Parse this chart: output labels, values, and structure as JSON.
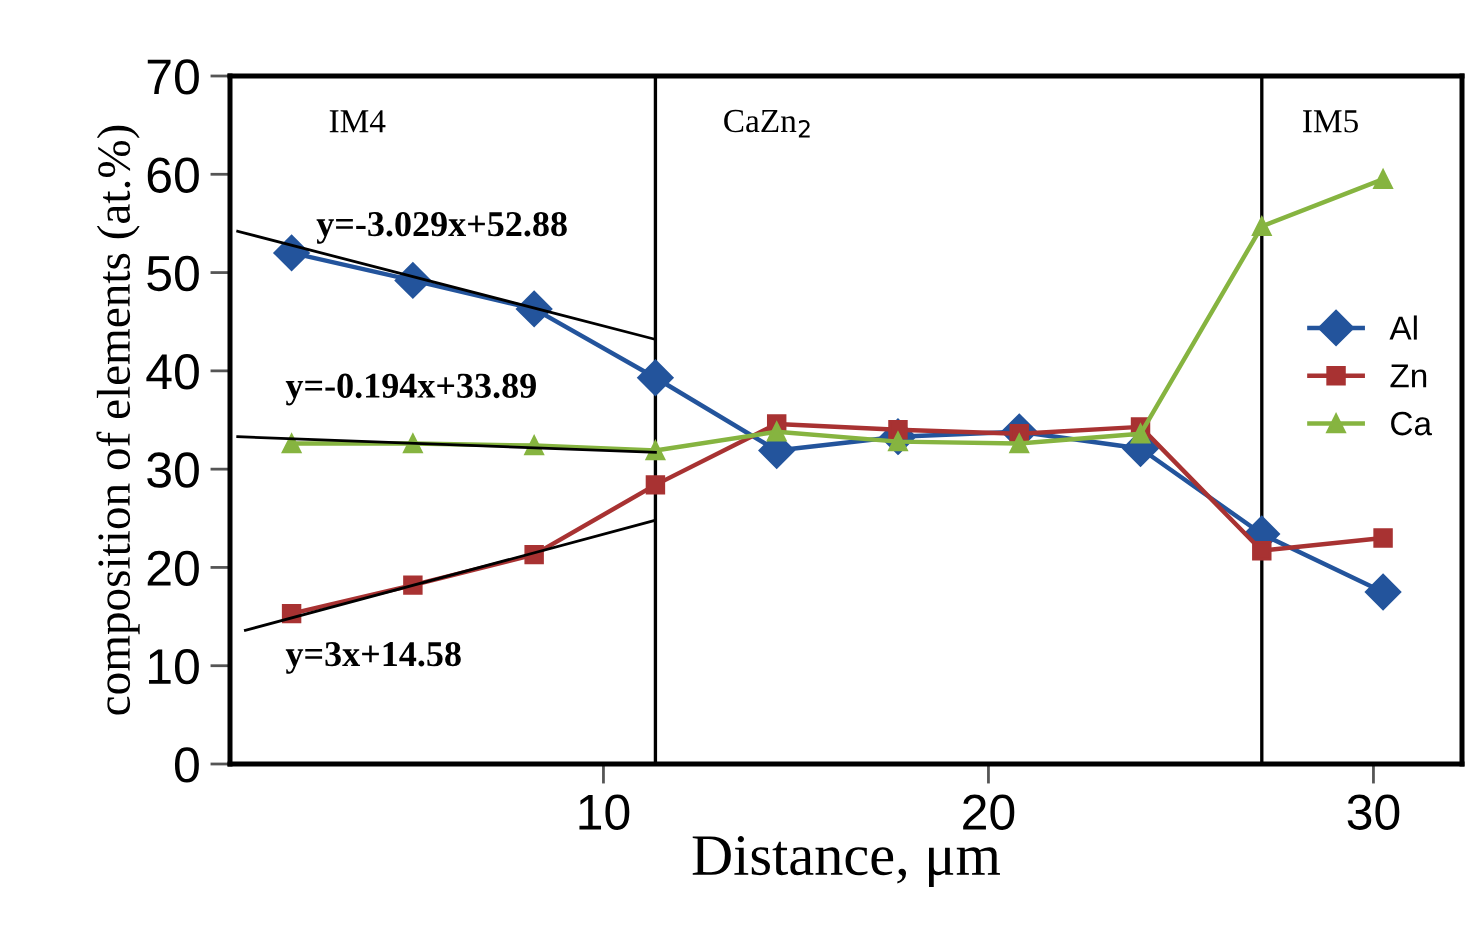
{
  "chart_data": {
    "type": "line",
    "xlabel": "Distance, μm",
    "ylabel": "composition of elements (at.%)",
    "x": [
      1.9,
      5.05,
      8.2,
      11.35,
      14.5,
      17.65,
      20.8,
      23.95,
      27.1,
      30.25
    ],
    "series": [
      {
        "name": "Al",
        "color": "#23549c",
        "marker": "diamond",
        "values": [
          52.0,
          49.2,
          46.3,
          39.3,
          31.9,
          33.3,
          33.8,
          32.1,
          23.4,
          17.5
        ]
      },
      {
        "name": "Zn",
        "color": "#a83232",
        "marker": "square",
        "values": [
          15.3,
          18.2,
          21.3,
          28.4,
          34.6,
          34.0,
          33.6,
          34.3,
          21.7,
          23.0
        ]
      },
      {
        "name": "Ca",
        "color": "#86b440",
        "marker": "triangle",
        "values": [
          32.6,
          32.6,
          32.4,
          31.9,
          33.8,
          32.8,
          32.6,
          33.6,
          54.7,
          59.5
        ]
      },
      {
        "type": "line",
        "color": "#000000",
        "marker": "none",
        "x": [
          0.5,
          11.35
        ],
        "values": [
          54.2,
          43.2
        ]
      },
      {
        "type": "line",
        "color": "#000000",
        "marker": "none",
        "x": [
          0.5,
          11.35
        ],
        "values": [
          33.3,
          31.7
        ]
      },
      {
        "type": "line",
        "color": "#000000",
        "marker": "none",
        "x": [
          0.7,
          11.35
        ],
        "values": [
          13.6,
          24.8
        ]
      }
    ],
    "xlim": [
      0.3,
      32.3
    ],
    "xticks": [
      10,
      20,
      30
    ],
    "ylim": [
      0,
      70
    ],
    "yticks": [
      0,
      10,
      20,
      30,
      40,
      50,
      60,
      70
    ],
    "ref_lines": [
      {
        "axis": "x",
        "value": 11.35,
        "color": "#000000"
      },
      {
        "axis": "x",
        "value": 27.1,
        "color": "#000000"
      }
    ],
    "annotations": [
      "IM4",
      "CaZn$_{2}$",
      "IM5",
      "y=-3.029x+52.88",
      "y=-0.194x+33.89",
      "y=3x+14.58"
    ],
    "legend": "right",
    "grid": false,
    "line_style": "solid"
  }
}
